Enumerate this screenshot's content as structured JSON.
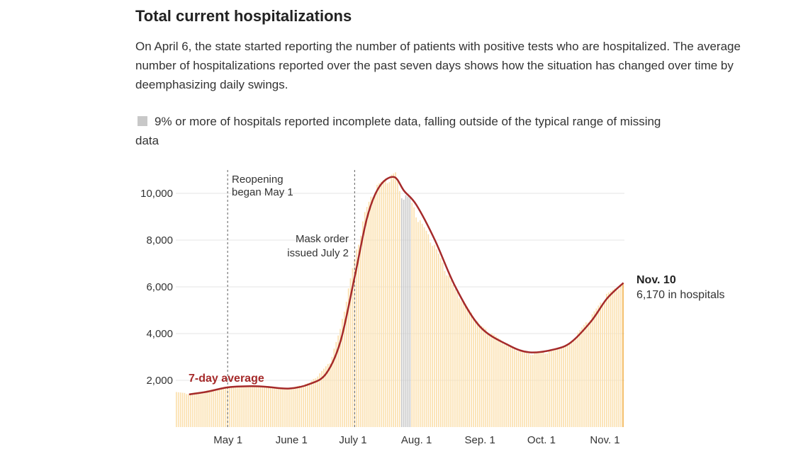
{
  "header": {
    "title": "Total current hospitalizations",
    "description": "On April 6, the state started reporting the number of patients with positive tests who are hospitalized. The average number of hospitalizations reported over the past seven days shows how the situation has changed over time by deemphasizing daily swings."
  },
  "legend": {
    "text": "9% or more of hospitals reported incomplete data, falling outside of the typical range of missing data",
    "swatch_color": "#c8c8c8"
  },
  "annotations": {
    "reopening_line1": "Reopening",
    "reopening_line2": "began May 1",
    "mask_line1": "Mask order",
    "mask_line2": "issued July 2",
    "avg_label": "7-day average",
    "end_label_bold": "Nov. 10",
    "end_label_value": "6,170 in hospitals"
  },
  "colors": {
    "bar": "#fbe0ae",
    "bar_incomplete": "#c8c8c8",
    "bar_last": "#f2b24c",
    "line": "#a52a2a",
    "grid": "#e6e6e6",
    "reference_line": "#777777"
  },
  "chart_data": {
    "type": "bar",
    "title": "Total current hospitalizations",
    "x_start": "2020-04-06",
    "x_end": "2020-11-10",
    "xticks": [
      "May 1",
      "June 1",
      "July 1",
      "Aug. 1",
      "Sep. 1",
      "Oct. 1",
      "Nov. 1"
    ],
    "yticks": [
      "2,000",
      "4,000",
      "6,000",
      "8,000",
      "10,000"
    ],
    "ylim": [
      0,
      11000
    ],
    "grid": true,
    "reference_lines": [
      {
        "date": "2020-05-01",
        "label": "Reopening began May 1"
      },
      {
        "date": "2020-07-02",
        "label": "Mask order issued July 2"
      }
    ],
    "incomplete_dates": [
      "2020-07-25",
      "2020-07-26",
      "2020-07-27",
      "2020-07-28",
      "2020-07-29"
    ],
    "bar_keypoints": [
      {
        "date": "2020-04-06",
        "value": 1500
      },
      {
        "date": "2020-04-12",
        "value": 1440
      },
      {
        "date": "2020-04-20",
        "value": 1550
      },
      {
        "date": "2020-05-01",
        "value": 1750
      },
      {
        "date": "2020-05-15",
        "value": 1780
      },
      {
        "date": "2020-05-31",
        "value": 1660
      },
      {
        "date": "2020-06-10",
        "value": 1900
      },
      {
        "date": "2020-06-15",
        "value": 2300
      },
      {
        "date": "2020-06-20",
        "value": 2800
      },
      {
        "date": "2020-06-25",
        "value": 4200
      },
      {
        "date": "2020-07-01",
        "value": 6800
      },
      {
        "date": "2020-07-07",
        "value": 9200
      },
      {
        "date": "2020-07-12",
        "value": 10300
      },
      {
        "date": "2020-07-18",
        "value": 10700
      },
      {
        "date": "2020-07-22",
        "value": 10900
      },
      {
        "date": "2020-07-24",
        "value": 10100
      },
      {
        "date": "2020-07-29",
        "value": 9800
      },
      {
        "date": "2020-08-02",
        "value": 9000
      },
      {
        "date": "2020-08-10",
        "value": 7800
      },
      {
        "date": "2020-08-20",
        "value": 5900
      },
      {
        "date": "2020-09-01",
        "value": 4400
      },
      {
        "date": "2020-09-15",
        "value": 3500
      },
      {
        "date": "2020-09-25",
        "value": 3150
      },
      {
        "date": "2020-10-06",
        "value": 3250
      },
      {
        "date": "2020-10-15",
        "value": 3600
      },
      {
        "date": "2020-10-25",
        "value": 4700
      },
      {
        "date": "2020-11-02",
        "value": 5700
      },
      {
        "date": "2020-11-10",
        "value": 6170
      }
    ],
    "series": [
      {
        "name": "7-day average",
        "points": [
          {
            "date": "2020-04-12",
            "value": 1400
          },
          {
            "date": "2020-04-20",
            "value": 1500
          },
          {
            "date": "2020-05-01",
            "value": 1700
          },
          {
            "date": "2020-05-12",
            "value": 1750
          },
          {
            "date": "2020-05-20",
            "value": 1720
          },
          {
            "date": "2020-05-31",
            "value": 1650
          },
          {
            "date": "2020-06-10",
            "value": 1850
          },
          {
            "date": "2020-06-18",
            "value": 2300
          },
          {
            "date": "2020-06-25",
            "value": 3700
          },
          {
            "date": "2020-07-02",
            "value": 6500
          },
          {
            "date": "2020-07-08",
            "value": 9000
          },
          {
            "date": "2020-07-14",
            "value": 10300
          },
          {
            "date": "2020-07-21",
            "value": 10700
          },
          {
            "date": "2020-07-26",
            "value": 10100
          },
          {
            "date": "2020-08-01",
            "value": 9500
          },
          {
            "date": "2020-08-10",
            "value": 8000
          },
          {
            "date": "2020-08-20",
            "value": 6000
          },
          {
            "date": "2020-09-01",
            "value": 4300
          },
          {
            "date": "2020-09-15",
            "value": 3500
          },
          {
            "date": "2020-09-25",
            "value": 3200
          },
          {
            "date": "2020-10-06",
            "value": 3300
          },
          {
            "date": "2020-10-15",
            "value": 3600
          },
          {
            "date": "2020-10-25",
            "value": 4500
          },
          {
            "date": "2020-11-02",
            "value": 5500
          },
          {
            "date": "2020-11-10",
            "value": 6170
          }
        ]
      }
    ]
  }
}
